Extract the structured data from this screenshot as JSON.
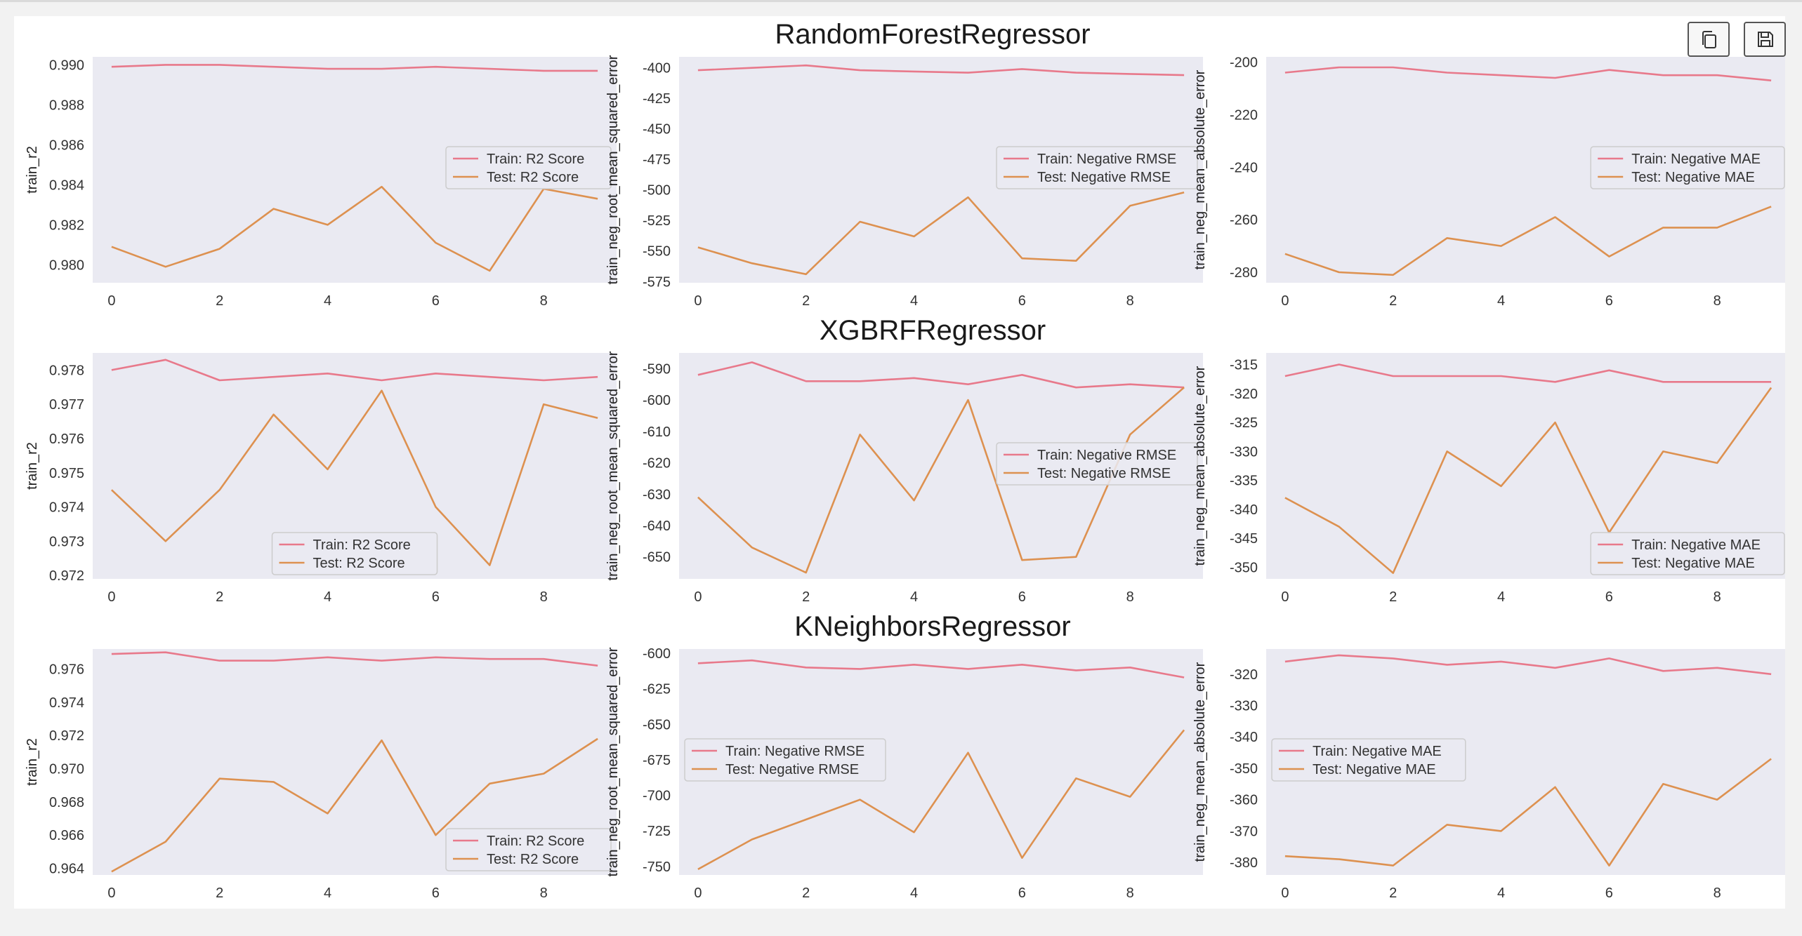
{
  "toolbar": {
    "buttons": [
      {
        "icon": "copy-icon"
      },
      {
        "icon": "save-icon"
      }
    ]
  },
  "colors": {
    "train": "#e8798b",
    "test": "#dd9150",
    "plot_bg": "#eaeaf2"
  },
  "chart_data": [
    {
      "row_title": "RandomForestRegressor",
      "charts": [
        {
          "type": "line",
          "ylabel": "train_r2",
          "ylim": [
            0.9791,
            0.9904
          ],
          "yticks": [
            "0.980",
            "0.982",
            "0.984",
            "0.986",
            "0.988",
            "0.990"
          ],
          "x": [
            0,
            1,
            2,
            3,
            4,
            5,
            6,
            7,
            8,
            9
          ],
          "xticks": [
            "0",
            "2",
            "4",
            "6",
            "8"
          ],
          "legend": "center-right",
          "grid": false,
          "series": [
            {
              "name": "Train: R2 Score",
              "values": [
                0.9899,
                0.99,
                0.99,
                0.9899,
                0.9898,
                0.9898,
                0.9899,
                0.9898,
                0.9897,
                0.9897
              ]
            },
            {
              "name": "Test: R2 Score",
              "values": [
                0.9809,
                0.9799,
                0.9808,
                0.9828,
                0.982,
                0.9839,
                0.9811,
                0.9797,
                0.9838,
                0.9833
              ]
            }
          ]
        },
        {
          "type": "line",
          "ylabel": "train_neg_root_mean_squared_error",
          "ylim": [
            -576,
            -391
          ],
          "yticks": [
            "-400",
            "-425",
            "-450",
            "-475",
            "-500",
            "-525",
            "-550",
            "-575"
          ],
          "x": [
            0,
            1,
            2,
            3,
            4,
            5,
            6,
            7,
            8,
            9
          ],
          "xticks": [
            "0",
            "2",
            "4",
            "6",
            "8"
          ],
          "legend": "center-right",
          "grid": false,
          "series": [
            {
              "name": "Train: Negative RMSE",
              "values": [
                -402,
                -400,
                -398,
                -402,
                -403,
                -404,
                -401,
                -404,
                -405,
                -406
              ]
            },
            {
              "name": "Test: Negative RMSE",
              "values": [
                -547,
                -560,
                -569,
                -526,
                -538,
                -506,
                -556,
                -558,
                -513,
                -502
              ]
            }
          ]
        },
        {
          "type": "line",
          "ylabel": "train_neg_mean_absolute_error",
          "ylim": [
            -284,
            -198
          ],
          "yticks": [
            "-200",
            "-220",
            "-240",
            "-260",
            "-280"
          ],
          "x": [
            0,
            1,
            2,
            3,
            4,
            5,
            6,
            7,
            8,
            9
          ],
          "xticks": [
            "0",
            "2",
            "4",
            "6",
            "8"
          ],
          "legend": "center-right",
          "grid": false,
          "series": [
            {
              "name": "Train: Negative MAE",
              "values": [
                -204,
                -202,
                -202,
                -204,
                -205,
                -206,
                -203,
                -205,
                -205,
                -207
              ]
            },
            {
              "name": "Test: Negative MAE",
              "values": [
                -273,
                -280,
                -281,
                -267,
                -270,
                -259,
                -274,
                -263,
                -263,
                -255
              ]
            }
          ]
        }
      ]
    },
    {
      "row_title": "XGBRFRegressor",
      "charts": [
        {
          "type": "line",
          "ylabel": "train_r2",
          "ylim": [
            0.9719,
            0.9785
          ],
          "yticks": [
            "0.972",
            "0.973",
            "0.974",
            "0.975",
            "0.976",
            "0.977",
            "0.978"
          ],
          "x": [
            0,
            1,
            2,
            3,
            4,
            5,
            6,
            7,
            8,
            9
          ],
          "xticks": [
            "0",
            "2",
            "4",
            "6",
            "8"
          ],
          "legend": "lower-center",
          "grid": false,
          "series": [
            {
              "name": "Train: R2 Score",
              "values": [
                0.978,
                0.9783,
                0.9777,
                0.9778,
                0.9779,
                0.9777,
                0.9779,
                0.9778,
                0.9777,
                0.9778
              ]
            },
            {
              "name": "Test: R2 Score",
              "values": [
                0.9745,
                0.973,
                0.9745,
                0.9767,
                0.9751,
                0.9774,
                0.974,
                0.9723,
                0.977,
                0.9766
              ]
            }
          ]
        },
        {
          "type": "line",
          "ylabel": "train_neg_root_mean_squared_error",
          "ylim": [
            -657,
            -585
          ],
          "yticks": [
            "-590",
            "-600",
            "-610",
            "-620",
            "-630",
            "-640",
            "-650"
          ],
          "x": [
            0,
            1,
            2,
            3,
            4,
            5,
            6,
            7,
            8,
            9
          ],
          "xticks": [
            "0",
            "2",
            "4",
            "6",
            "8"
          ],
          "legend": "center-right",
          "grid": false,
          "series": [
            {
              "name": "Train: Negative RMSE",
              "values": [
                -592,
                -588,
                -594,
                -594,
                -593,
                -595,
                -592,
                -596,
                -595,
                -596
              ]
            },
            {
              "name": "Test: Negative RMSE",
              "values": [
                -631,
                -647,
                -655,
                -611,
                -632,
                -600,
                -651,
                -650,
                -611,
                -596
              ]
            }
          ]
        },
        {
          "type": "line",
          "ylabel": "train_neg_mean_absolute_error",
          "ylim": [
            -352,
            -313
          ],
          "yticks": [
            "-315",
            "-320",
            "-325",
            "-330",
            "-335",
            "-340",
            "-345",
            "-350"
          ],
          "x": [
            0,
            1,
            2,
            3,
            4,
            5,
            6,
            7,
            8,
            9
          ],
          "xticks": [
            "0",
            "2",
            "4",
            "6",
            "8"
          ],
          "legend": "lower-right",
          "grid": false,
          "series": [
            {
              "name": "Train: Negative MAE",
              "values": [
                -317,
                -315,
                -317,
                -317,
                -317,
                -318,
                -316,
                -318,
                -318,
                -318
              ]
            },
            {
              "name": "Test: Negative MAE",
              "values": [
                -338,
                -343,
                -351,
                -330,
                -336,
                -325,
                -344,
                -330,
                -332,
                -319
              ]
            }
          ]
        }
      ]
    },
    {
      "row_title": "KNeighborsRegressor",
      "charts": [
        {
          "type": "line",
          "ylabel": "train_r2",
          "ylim": [
            0.9636,
            0.9772
          ],
          "yticks": [
            "0.964",
            "0.966",
            "0.968",
            "0.970",
            "0.972",
            "0.974",
            "0.976"
          ],
          "x": [
            0,
            1,
            2,
            3,
            4,
            5,
            6,
            7,
            8,
            9
          ],
          "xticks": [
            "0",
            "2",
            "4",
            "6",
            "8"
          ],
          "legend": "lower-right",
          "grid": false,
          "series": [
            {
              "name": "Train: R2 Score",
              "values": [
                0.9769,
                0.977,
                0.9765,
                0.9765,
                0.9767,
                0.9765,
                0.9767,
                0.9766,
                0.9766,
                0.9762
              ]
            },
            {
              "name": "Test: R2 Score",
              "values": [
                0.9638,
                0.9656,
                0.9694,
                0.9692,
                0.9673,
                0.9717,
                0.966,
                0.9691,
                0.9697,
                0.9718
              ]
            }
          ]
        },
        {
          "type": "line",
          "ylabel": "train_neg_root_mean_squared_error",
          "ylim": [
            -756,
            -597
          ],
          "yticks": [
            "-600",
            "-625",
            "-650",
            "-675",
            "-700",
            "-725",
            "-750"
          ],
          "x": [
            0,
            1,
            2,
            3,
            4,
            5,
            6,
            7,
            8,
            9
          ],
          "xticks": [
            "0",
            "2",
            "4",
            "6",
            "8"
          ],
          "legend": "center-left",
          "grid": false,
          "series": [
            {
              "name": "Train: Negative RMSE",
              "values": [
                -607,
                -605,
                -610,
                -611,
                -608,
                -611,
                -608,
                -612,
                -610,
                -617
              ]
            },
            {
              "name": "Test: Negative RMSE",
              "values": [
                -752,
                -731,
                -717,
                -703,
                -726,
                -670,
                -744,
                -688,
                -701,
                -654
              ]
            }
          ]
        },
        {
          "type": "line",
          "ylabel": "train_neg_mean_absolute_error",
          "ylim": [
            -384,
            -312
          ],
          "yticks": [
            "-320",
            "-330",
            "-340",
            "-350",
            "-360",
            "-370",
            "-380"
          ],
          "x": [
            0,
            1,
            2,
            3,
            4,
            5,
            6,
            7,
            8,
            9
          ],
          "xticks": [
            "0",
            "2",
            "4",
            "6",
            "8"
          ],
          "legend": "center-left",
          "grid": false,
          "series": [
            {
              "name": "Train: Negative MAE",
              "values": [
                -316,
                -314,
                -315,
                -317,
                -316,
                -318,
                -315,
                -319,
                -318,
                -320
              ]
            },
            {
              "name": "Test: Negative MAE",
              "values": [
                -378,
                -379,
                -381,
                -368,
                -370,
                -356,
                -381,
                -355,
                -360,
                -347
              ]
            }
          ]
        }
      ]
    }
  ]
}
